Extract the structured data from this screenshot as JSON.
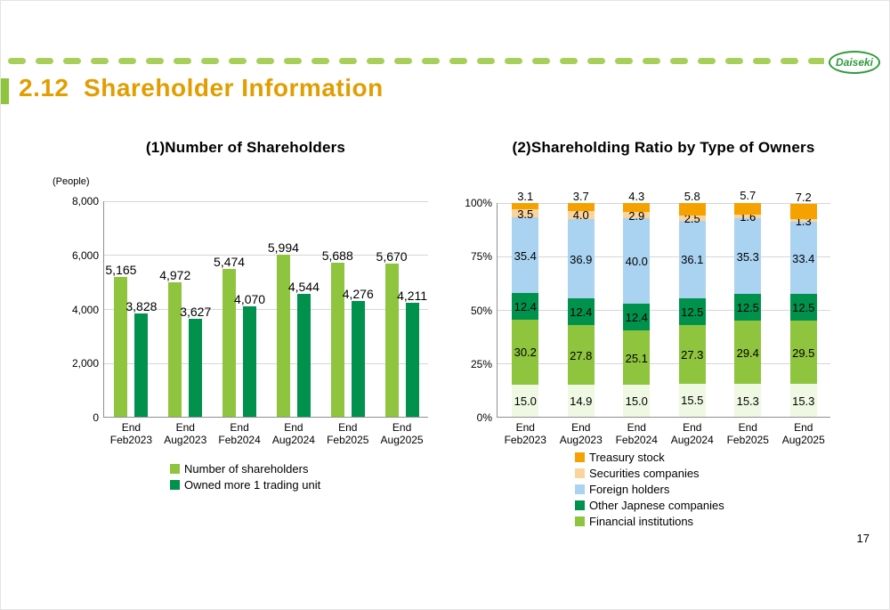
{
  "header": {
    "title": "2.12  Shareholder Information",
    "logo_text": "Daiseki",
    "page_number": "17"
  },
  "chart_data": [
    {
      "type": "bar",
      "stacked": false,
      "title": "(1)Number of Shareholders",
      "ylabel": "(People)",
      "xlabel": "",
      "ylim": [
        0,
        8000
      ],
      "grid": true,
      "legend_position": "bottom",
      "y_ticks": [
        {
          "v": 0,
          "label": "0"
        },
        {
          "v": 2000,
          "label": "2,000"
        },
        {
          "v": 4000,
          "label": "4,000"
        },
        {
          "v": 6000,
          "label": "6,000"
        },
        {
          "v": 8000,
          "label": "8,000"
        }
      ],
      "categories": [
        [
          "End",
          "Feb2023"
        ],
        [
          "End",
          "Aug2023"
        ],
        [
          "End",
          "Feb2024"
        ],
        [
          "End",
          "Aug2024"
        ],
        [
          "End",
          "Feb2025"
        ],
        [
          "End",
          "Aug2025"
        ]
      ],
      "series": [
        {
          "name": "Number of shareholders",
          "color": "#8fc43f",
          "values": [
            5165,
            4972,
            5474,
            5994,
            5688,
            5670
          ]
        },
        {
          "name": "Owned more 1 trading unit",
          "color": "#00924c",
          "values": [
            3828,
            3627,
            4070,
            4544,
            4276,
            4211
          ]
        }
      ]
    },
    {
      "type": "bar",
      "stacked": true,
      "title": "(2)Shareholding Ratio by Type of Owners",
      "ylabel": "",
      "xlabel": "",
      "ylim": [
        0,
        100
      ],
      "grid": true,
      "legend_position": "bottom",
      "y_ticks": [
        {
          "v": 0,
          "label": "0%"
        },
        {
          "v": 25,
          "label": "25%"
        },
        {
          "v": 50,
          "label": "50%"
        },
        {
          "v": 75,
          "label": "75%"
        },
        {
          "v": 100,
          "label": "100%"
        }
      ],
      "categories": [
        [
          "End",
          "Feb2023"
        ],
        [
          "End",
          "Aug2023"
        ],
        [
          "End",
          "Feb2024"
        ],
        [
          "End",
          "Aug2024"
        ],
        [
          "End",
          "Feb2025"
        ],
        [
          "End",
          "Aug2025"
        ]
      ],
      "series": [
        {
          "name": "",
          "color": "#eff8e3",
          "values": [
            15.0,
            14.9,
            15.0,
            15.5,
            15.3,
            15.3
          ]
        },
        {
          "name": "Financial institutions",
          "color": "#8fc43f",
          "values": [
            30.2,
            27.8,
            25.1,
            27.3,
            29.4,
            29.5
          ]
        },
        {
          "name": "Other Japnese companies",
          "color": "#00924c",
          "values": [
            12.4,
            12.4,
            12.4,
            12.5,
            12.5,
            12.5
          ]
        },
        {
          "name": "Foreign holders",
          "color": "#aad3f2",
          "values": [
            35.4,
            36.9,
            40.0,
            36.1,
            35.3,
            33.4
          ]
        },
        {
          "name": "Securities companies",
          "color": "#fbd49c",
          "values": [
            3.5,
            4.0,
            2.9,
            2.5,
            1.6,
            1.3
          ]
        },
        {
          "name": "Treasury stock",
          "color": "#f5a100",
          "values": [
            3.1,
            3.7,
            4.3,
            5.8,
            5.7,
            7.2
          ]
        }
      ],
      "legend": [
        "Treasury stock",
        "Securities companies",
        "Foreign holders",
        "Other Japnese companies",
        "Financial institutions"
      ]
    }
  ]
}
